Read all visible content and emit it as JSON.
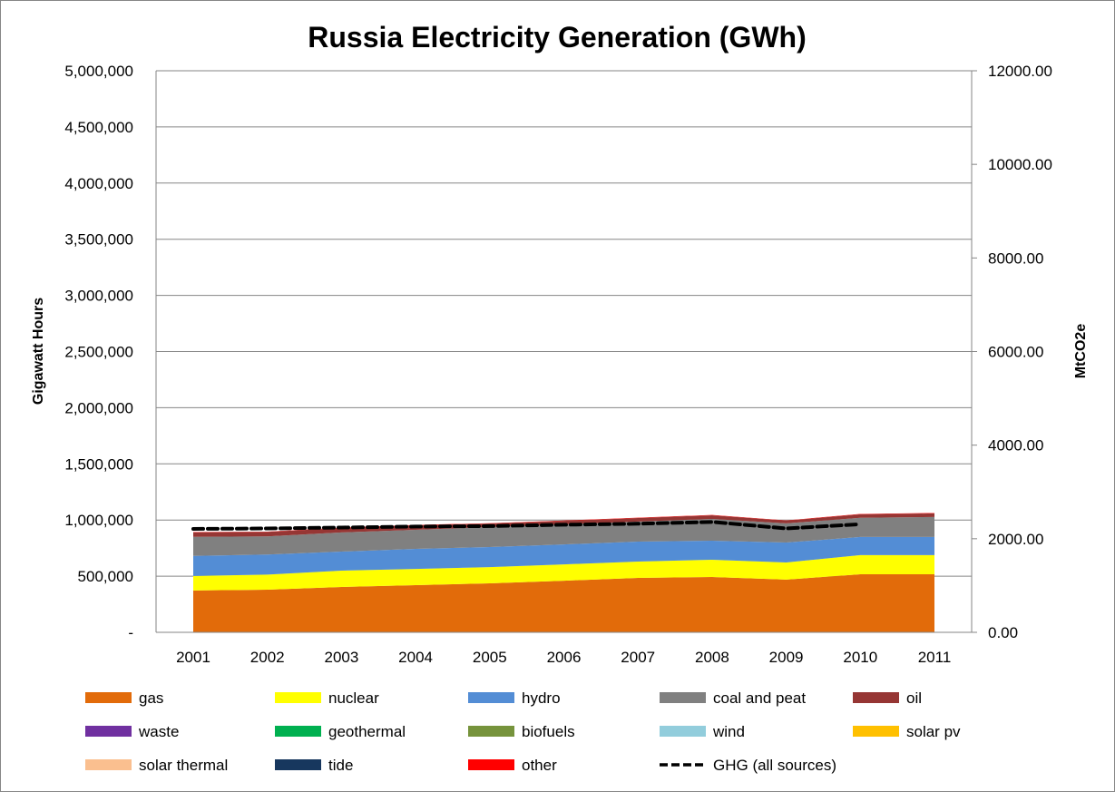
{
  "chart_data": {
    "type": "area",
    "title": "Russia Electricity Generation (GWh)",
    "xlabel": "",
    "ylabel": "Gigawatt Hours",
    "y2label": "MtCO2e",
    "categories": [
      "2001",
      "2002",
      "2003",
      "2004",
      "2005",
      "2006",
      "2007",
      "2008",
      "2009",
      "2010",
      "2011"
    ],
    "ylim": [
      0,
      5000000
    ],
    "y2lim": [
      0,
      12000
    ],
    "yticks": [
      "-",
      "500,000",
      "1,000,000",
      "1,500,000",
      "2,000,000",
      "2,500,000",
      "3,000,000",
      "3,500,000",
      "4,000,000",
      "4,500,000",
      "5,000,000"
    ],
    "y2ticks": [
      "0.00",
      "2000.00",
      "4000.00",
      "6000.00",
      "8000.00",
      "10000.00",
      "12000.00"
    ],
    "grid": true,
    "legend_position": "bottom",
    "series": [
      {
        "name": "gas",
        "color": "#E26B0A",
        "values": [
          372000,
          380000,
          404000,
          420000,
          436000,
          460000,
          485000,
          493000,
          469000,
          517000,
          517000
        ]
      },
      {
        "name": "nuclear",
        "color": "#FFFF00",
        "values": [
          130000,
          134000,
          145000,
          145000,
          145000,
          145000,
          145000,
          153000,
          153000,
          170000,
          170000
        ]
      },
      {
        "name": "hydro",
        "color": "#538DD5",
        "values": [
          178000,
          178000,
          170000,
          178000,
          178000,
          178000,
          178000,
          170000,
          178000,
          162000,
          162000
        ]
      },
      {
        "name": "coal and peat",
        "color": "#808080",
        "values": [
          170000,
          162000,
          170000,
          170000,
          178000,
          178000,
          178000,
          194000,
          170000,
          170000,
          178000
        ]
      },
      {
        "name": "oil",
        "color": "#963634",
        "values": [
          40000,
          40000,
          40000,
          40000,
          32000,
          32000,
          32000,
          32000,
          24000,
          32000,
          32000
        ]
      },
      {
        "name": "waste",
        "color": "#7030A0",
        "values": [
          0,
          0,
          0,
          0,
          0,
          0,
          0,
          0,
          0,
          0,
          0
        ]
      },
      {
        "name": "geothermal",
        "color": "#00B050",
        "values": [
          0,
          0,
          0,
          0,
          0,
          0,
          0,
          0,
          0,
          0,
          0
        ]
      },
      {
        "name": "biofuels",
        "color": "#76933C",
        "values": [
          0,
          0,
          0,
          0,
          0,
          0,
          0,
          0,
          0,
          0,
          0
        ]
      },
      {
        "name": "wind",
        "color": "#92CDDC",
        "values": [
          0,
          0,
          0,
          0,
          0,
          0,
          0,
          0,
          0,
          0,
          0
        ]
      },
      {
        "name": "solar pv",
        "color": "#FFC000",
        "values": [
          0,
          0,
          0,
          0,
          0,
          0,
          0,
          0,
          0,
          0,
          0
        ]
      },
      {
        "name": "solar thermal",
        "color": "#FABF8F",
        "values": [
          0,
          0,
          0,
          0,
          0,
          0,
          0,
          0,
          0,
          0,
          0
        ]
      },
      {
        "name": "tide",
        "color": "#17375E",
        "values": [
          0,
          0,
          0,
          0,
          0,
          0,
          0,
          0,
          0,
          0,
          0
        ]
      },
      {
        "name": "other",
        "color": "#FF0000",
        "values": [
          3000,
          3000,
          3000,
          3000,
          3000,
          3000,
          3000,
          3000,
          3000,
          3000,
          3000
        ]
      }
    ],
    "line_series": {
      "name": "GHG (all sources)",
      "color": "#000000",
      "axis": "secondary",
      "values": [
        2210,
        2220,
        2240,
        2260,
        2270,
        2300,
        2320,
        2360,
        2220,
        2310,
        null
      ]
    }
  }
}
